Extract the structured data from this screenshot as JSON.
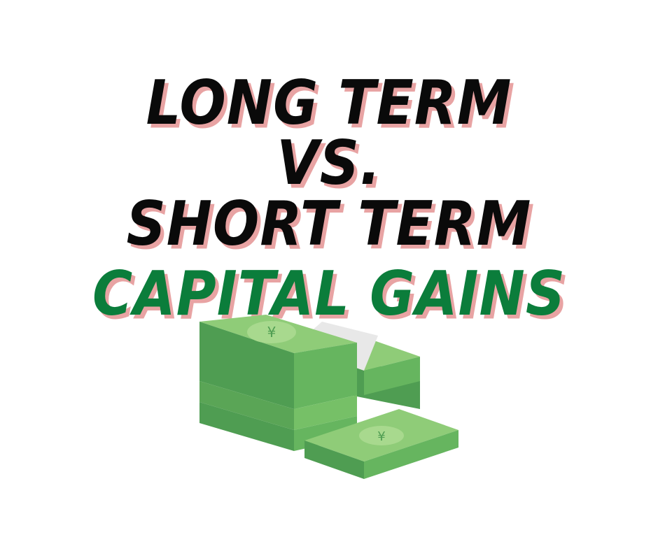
{
  "headline": {
    "line1": "LONG TERM",
    "line2": "VS.",
    "line3": "SHORT TERM",
    "line4": "CAPITAL GAINS"
  },
  "colors": {
    "text_dark": "#0a0a0a",
    "text_green": "#0b7d3b",
    "text_shadow": "#e8a3a3",
    "cash_dark": "#4f9d52",
    "cash_mid": "#66b55f",
    "cash_light": "#8fcc78",
    "band": "#e8e8e8"
  },
  "illustration": {
    "icon": "cash-stack-icon",
    "currency_symbol": "¥"
  }
}
